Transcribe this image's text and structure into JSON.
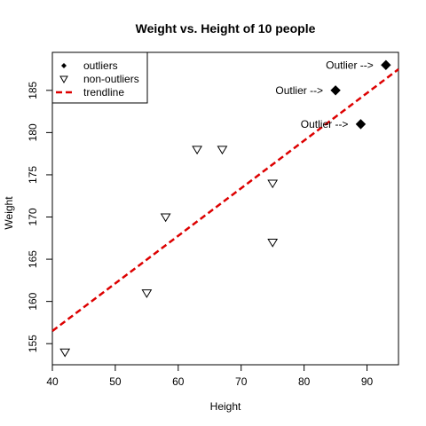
{
  "chart_data": {
    "type": "scatter",
    "title": "Weight vs. Height of 10 people",
    "xlabel": "Height",
    "ylabel": "Weight",
    "xlim": [
      40,
      95
    ],
    "ylim": [
      152.5,
      189.5
    ],
    "x_ticks": [
      40,
      50,
      60,
      70,
      80,
      90
    ],
    "y_ticks": [
      155,
      160,
      165,
      170,
      175,
      180,
      185
    ],
    "grid": false,
    "legend_position": "top-left",
    "legend": [
      {
        "label": "outliers",
        "symbol": "filled-diamond"
      },
      {
        "label": "non-outliers",
        "symbol": "open-triangle-down"
      },
      {
        "label": "trendline",
        "symbol": "dashed-line"
      }
    ],
    "series": [
      {
        "name": "outliers",
        "marker": "filled-diamond",
        "color": "#000000",
        "points": [
          {
            "x": 85,
            "y": 185
          },
          {
            "x": 89,
            "y": 181
          },
          {
            "x": 93,
            "y": 188
          }
        ]
      },
      {
        "name": "non-outliers",
        "marker": "open-triangle-down",
        "color": "#000000",
        "points": [
          {
            "x": 42,
            "y": 154
          },
          {
            "x": 55,
            "y": 161
          },
          {
            "x": 58,
            "y": 170
          },
          {
            "x": 63,
            "y": 178
          },
          {
            "x": 67,
            "y": 178
          },
          {
            "x": 75,
            "y": 174
          },
          {
            "x": 75,
            "y": 167
          }
        ]
      }
    ],
    "trendline": {
      "name": "trendline",
      "style": "dashed",
      "color": "#dd0000",
      "points": [
        {
          "x": 40,
          "y": 156.5
        },
        {
          "x": 95,
          "y": 187.5
        }
      ]
    },
    "annotations": [
      {
        "text": "Outlier -->",
        "x": 85,
        "y": 185
      },
      {
        "text": "Outlier -->",
        "x": 89,
        "y": 181
      },
      {
        "text": "Outlier -->",
        "x": 93,
        "y": 188
      }
    ]
  }
}
